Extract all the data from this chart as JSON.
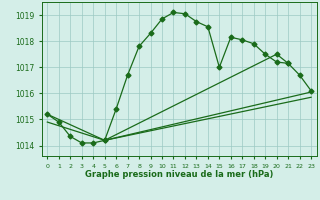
{
  "line1_x": [
    0,
    1,
    2,
    3,
    4,
    5,
    6,
    7,
    8,
    9,
    10,
    11,
    12,
    13,
    14,
    15,
    16,
    17,
    18,
    19,
    20,
    21
  ],
  "line1_y": [
    1015.2,
    1014.9,
    1014.35,
    1014.1,
    1014.1,
    1014.2,
    1015.4,
    1016.7,
    1017.8,
    1018.3,
    1018.85,
    1019.1,
    1019.05,
    1018.75,
    1018.55,
    1017.0,
    1018.15,
    1018.05,
    1017.9,
    1017.5,
    1017.2,
    1017.15
  ],
  "line2_x": [
    5,
    20,
    21,
    22,
    23
  ],
  "line2_y": [
    1014.2,
    1017.5,
    1017.15,
    1016.7,
    1016.1
  ],
  "line3_x": [
    0,
    5,
    23
  ],
  "line3_y": [
    1015.2,
    1014.2,
    1016.05
  ],
  "line4_x": [
    0,
    5,
    23
  ],
  "line4_y": [
    1014.9,
    1014.2,
    1015.85
  ],
  "xlim": [
    -0.5,
    23.5
  ],
  "ylim": [
    1013.6,
    1019.5
  ],
  "yticks": [
    1014,
    1015,
    1016,
    1017,
    1018,
    1019
  ],
  "xtick_labels": [
    "0",
    "1",
    "2",
    "3",
    "4",
    "5",
    "6",
    "7",
    "8",
    "9",
    "10",
    "11",
    "12",
    "13",
    "14",
    "15",
    "16",
    "17",
    "18",
    "19",
    "20",
    "21",
    "22",
    "23"
  ],
  "line_color": "#1a6b1a",
  "bg_color": "#d4eee8",
  "grid_color": "#9dc9c3",
  "xlabel": "Graphe pression niveau de la mer (hPa)",
  "marker": "D",
  "marker_size": 2.5,
  "linewidth": 0.9
}
